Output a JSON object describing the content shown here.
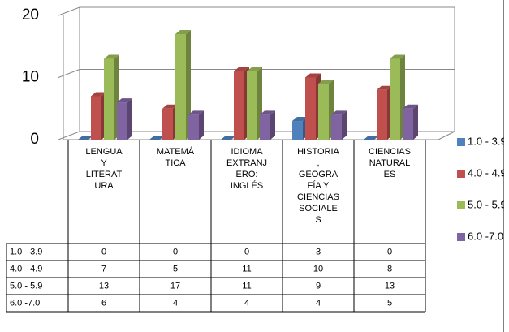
{
  "chart_data": {
    "type": "bar3d",
    "categories": [
      "LENGUA Y LITERATURA",
      "MATEMÁTICA",
      "IDIOMA EXTRANJERO: INGLÉS",
      "HISTORIA, GEOGRAFÍA Y CIENCIAS SOCIALES",
      "CIENCIAS NATURALES"
    ],
    "series": [
      {
        "name": "1.0 - 3.9",
        "color": "#4f81bd",
        "values": [
          0,
          0,
          0,
          3,
          0
        ]
      },
      {
        "name": "4.0 - 4.9",
        "color": "#c0504d",
        "values": [
          7,
          5,
          11,
          10,
          8
        ]
      },
      {
        "name": "5.0 - 5.9",
        "color": "#9bbb59",
        "values": [
          13,
          17,
          11,
          9,
          13
        ]
      },
      {
        "name": "6.0 -7.0",
        "color": "#8064a2",
        "values": [
          6,
          4,
          4,
          4,
          5
        ]
      }
    ],
    "ylim": [
      0,
      20
    ],
    "yticks": [
      0,
      10,
      20
    ],
    "grid": true,
    "legend": "right",
    "data_table": true
  }
}
